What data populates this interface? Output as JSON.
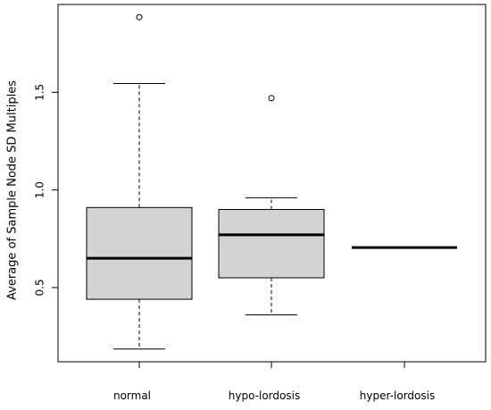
{
  "chart_data": {
    "type": "boxplot",
    "title": "",
    "xlabel": "",
    "ylabel": "Average of Sample Node SD Multiples",
    "ylim": [
      0.12,
      1.95
    ],
    "yticks": [
      0.5,
      1.0,
      1.5
    ],
    "ytick_labels": [
      "0.5",
      "1.0",
      "1.5"
    ],
    "grid": false,
    "categories": [
      "normal",
      "hypo-lordosis",
      "hyper-lordosis"
    ],
    "boxes": [
      {
        "category": "normal",
        "whisker_low": 0.185,
        "q1": 0.44,
        "median": 0.65,
        "q3": 0.91,
        "whisker_high": 1.545,
        "outliers": [
          1.885
        ]
      },
      {
        "category": "hypo-lordosis",
        "whisker_low": 0.36,
        "q1": 0.55,
        "median": 0.77,
        "q3": 0.9,
        "whisker_high": 0.96,
        "outliers": [
          1.47
        ]
      },
      {
        "category": "hyper-lordosis",
        "whisker_low": 0.705,
        "q1": 0.705,
        "median": 0.705,
        "q3": 0.705,
        "whisker_high": 0.705,
        "outliers": []
      }
    ],
    "box_fill": "#d3d3d3",
    "line_color": "#000000"
  }
}
